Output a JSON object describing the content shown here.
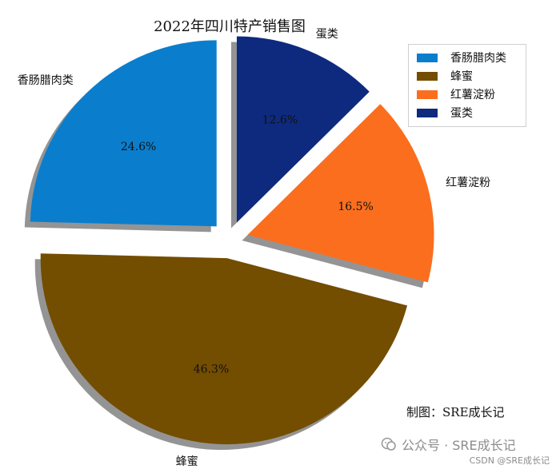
{
  "chart_data": {
    "type": "pie",
    "title": "2022年四川特产销售图",
    "categories": [
      "香肠腊肉类",
      "蜂蜜",
      "红薯淀粉",
      "蛋类"
    ],
    "values": [
      24.6,
      46.3,
      16.5,
      12.6
    ],
    "pct_labels": [
      "24.6%",
      "46.3%",
      "16.5%",
      "12.6%"
    ],
    "colors": [
      "#0a7ecd",
      "#734d00",
      "#fb6e1e",
      "#0e2a7e"
    ],
    "explode": [
      0.1,
      0.1,
      0.1,
      0.1
    ],
    "start_angle": 90,
    "counterclock": true,
    "shadow": true,
    "legend_position": "upper-right"
  },
  "annotation": "制图：SRE成长记",
  "watermark": {
    "wechat": "公众号 · SRE成长记",
    "csdn": "CSDN @SRE成长记"
  }
}
